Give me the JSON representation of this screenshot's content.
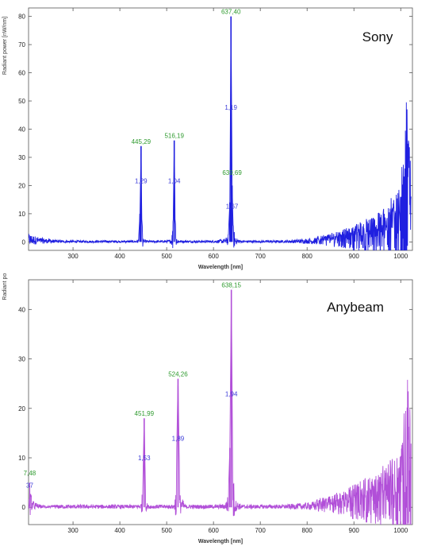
{
  "chart_data": [
    {
      "type": "line",
      "title": "Sony",
      "xlabel": "Wavelength [nm]",
      "ylabel": "Radiant power [nW/nm]",
      "xlim": [
        205,
        1025
      ],
      "ylim": [
        -3,
        83
      ],
      "xticks": [
        300,
        400,
        500,
        600,
        700,
        800,
        900,
        1000
      ],
      "yticks": [
        0,
        10,
        20,
        30,
        40,
        50,
        60,
        70,
        80
      ],
      "grid": false,
      "series": [
        {
          "color": "#1f1fe0",
          "x": [
            205,
            230,
            260,
            300,
            350,
            400,
            430,
            440,
            443,
            445.29,
            447,
            450,
            460,
            500,
            510,
            514,
            516.19,
            518,
            522,
            540,
            600,
            625,
            632,
            635,
            637.4,
            639.69,
            642,
            648,
            660,
            700,
            750,
            800,
            850,
            900,
            950,
            1000,
            1010,
            1025
          ],
          "y": [
            3,
            1.5,
            0.8,
            0.4,
            0.3,
            0.3,
            0.5,
            1,
            10,
            34,
            8,
            1,
            0.5,
            0.5,
            1.2,
            8,
            36,
            8,
            1,
            0.4,
            0.5,
            1.2,
            3,
            14,
            80,
            20,
            6,
            1.5,
            0.6,
            0.4,
            0.6,
            1.2,
            2.5,
            5,
            9,
            16,
            47,
            20
          ]
        }
      ],
      "annotations": [
        {
          "x": 445.29,
          "y": 34,
          "text": "445,29",
          "color": "#2e9a2e"
        },
        {
          "x": 445.29,
          "y": 20,
          "text": "1,29",
          "color": "#3a3ad8"
        },
        {
          "x": 516.19,
          "y": 36,
          "text": "516,19",
          "color": "#2e9a2e"
        },
        {
          "x": 516.19,
          "y": 20,
          "text": "1,04",
          "color": "#3a3ad8"
        },
        {
          "x": 637.4,
          "y": 80,
          "text": "637,40",
          "color": "#2e9a2e"
        },
        {
          "x": 637.4,
          "y": 46,
          "text": "1,19",
          "color": "#3a3ad8"
        },
        {
          "x": 639.69,
          "y": 23,
          "text": "639,69",
          "color": "#2e9a2e"
        },
        {
          "x": 639.69,
          "y": 11,
          "text": "1,67",
          "color": "#3a3ad8"
        }
      ]
    },
    {
      "type": "line",
      "title": "Anybeam",
      "xlabel": "Wavelength [nm]",
      "ylabel": "Radiant power [nW/nm]",
      "xlim": [
        205,
        1025
      ],
      "ylim": [
        -3.5,
        46
      ],
      "xticks": [
        300,
        400,
        500,
        600,
        700,
        800,
        900,
        1000
      ],
      "yticks": [
        0,
        10,
        20,
        30,
        40
      ],
      "grid": false,
      "series": [
        {
          "color": "#b14fd8",
          "x": [
            205,
            207.48,
            212,
            230,
            260,
            300,
            350,
            400,
            430,
            445,
            449,
            451.99,
            455,
            460,
            500,
            515,
            520,
            524.26,
            528,
            540,
            600,
            625,
            632,
            635,
            638.15,
            641,
            648,
            660,
            700,
            750,
            800,
            850,
            900,
            950,
            1000,
            1015,
            1025
          ],
          "y": [
            2,
            6,
            1.5,
            0.5,
            0.3,
            0.2,
            0.2,
            0.3,
            0.5,
            0.8,
            4,
            18,
            2,
            0.5,
            0.4,
            0.6,
            4,
            26,
            3,
            0.5,
            0.4,
            0.8,
            3,
            12,
            44,
            8,
            1.5,
            0.6,
            0.4,
            0.6,
            1,
            2,
            4,
            6,
            10,
            26,
            8
          ]
        }
      ],
      "annotations": [
        {
          "x": 207.48,
          "y": 6,
          "text": "7,48",
          "color": "#2e9a2e"
        },
        {
          "x": 207.48,
          "y": 3.5,
          "text": "37",
          "color": "#3a3ad8"
        },
        {
          "x": 451.99,
          "y": 18,
          "text": "451,99",
          "color": "#2e9a2e"
        },
        {
          "x": 451.99,
          "y": 9,
          "text": "1,53",
          "color": "#3a3ad8"
        },
        {
          "x": 524.26,
          "y": 26,
          "text": "524,26",
          "color": "#2e9a2e"
        },
        {
          "x": 524.26,
          "y": 13,
          "text": "1,89",
          "color": "#3a3ad8"
        },
        {
          "x": 638.15,
          "y": 44,
          "text": "638,15",
          "color": "#2e9a2e"
        },
        {
          "x": 638.15,
          "y": 22,
          "text": "1,94",
          "color": "#3a3ad8"
        }
      ]
    }
  ]
}
